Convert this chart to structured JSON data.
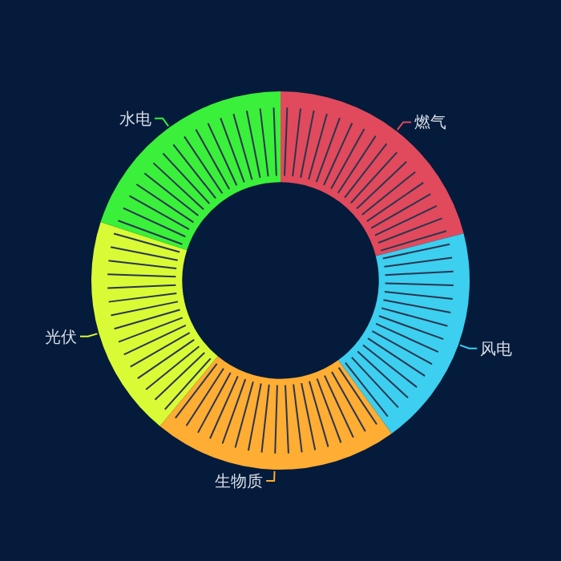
{
  "chart_data": {
    "type": "donut",
    "categories": [
      "燃气",
      "风电",
      "生物质",
      "光伏",
      "水电"
    ],
    "values": [
      21,
      19,
      21,
      19,
      20
    ],
    "colors": [
      "#e04a5c",
      "#3ccfef",
      "#ffad33",
      "#d9fb35",
      "#3af03a"
    ]
  }
}
